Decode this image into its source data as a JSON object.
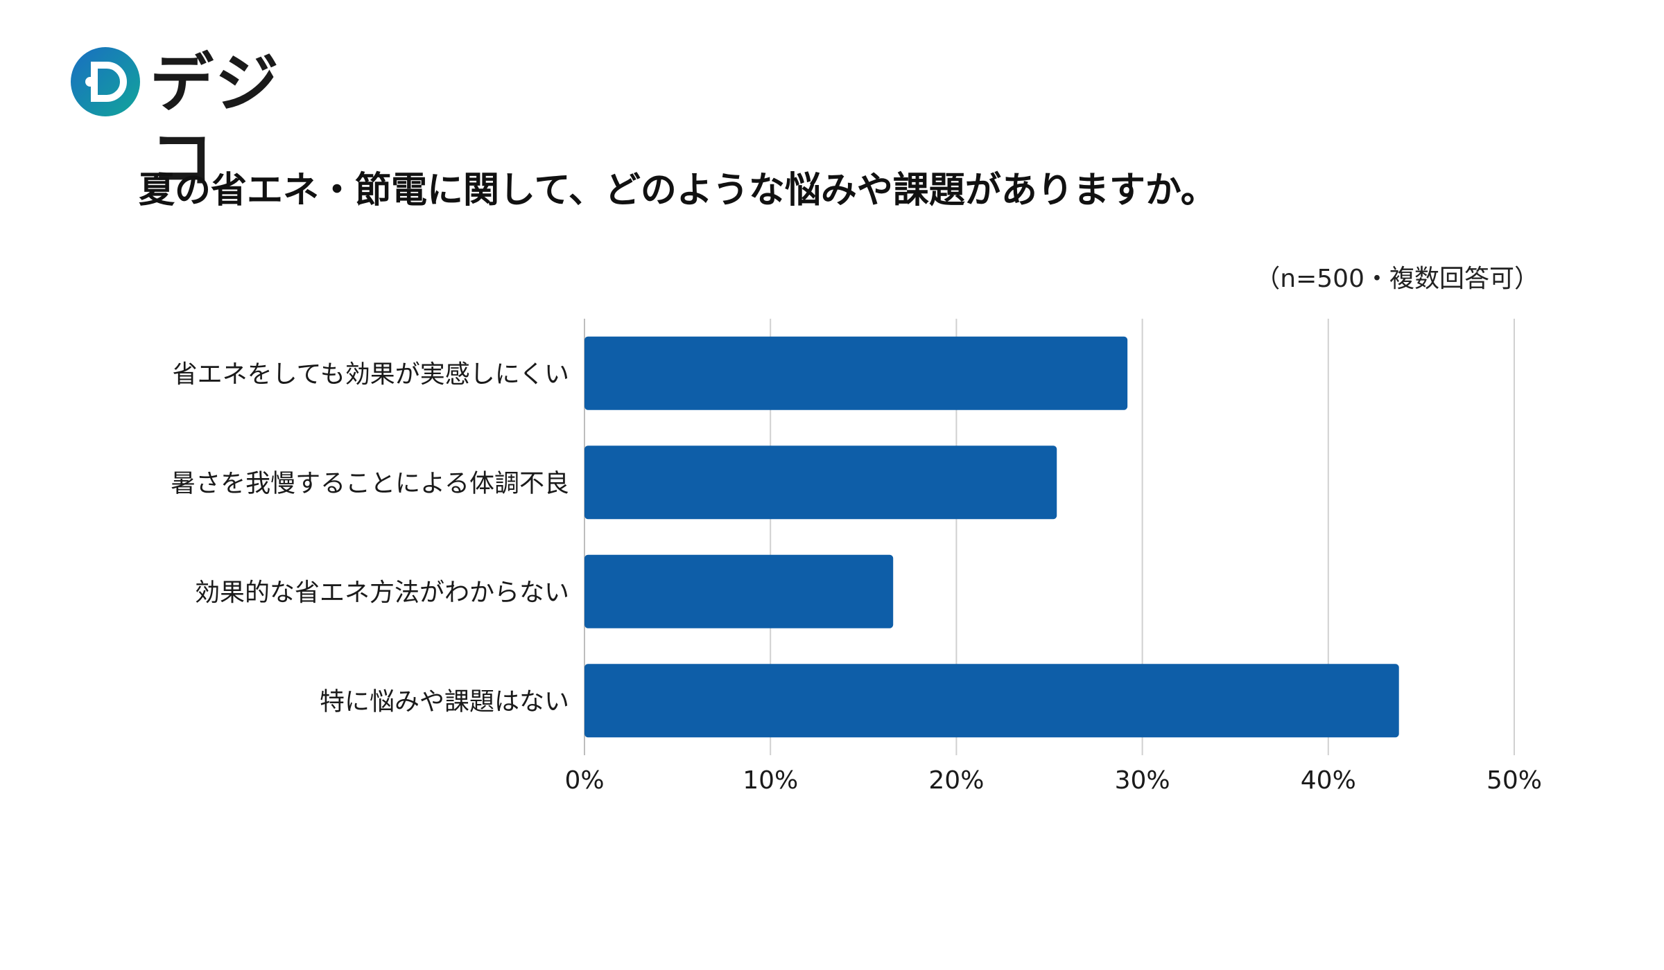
{
  "brand": {
    "name": "デジコ",
    "mark_letter": "D",
    "colors": {
      "mark_start": "#1a6ec2",
      "mark_end": "#12a59a",
      "dots": "#22a6c9"
    }
  },
  "chart_data": {
    "type": "bar",
    "orientation": "horizontal",
    "title": "夏の省エネ・節電に関して、どのような悩みや課題がありますか。",
    "note": "（n=500・複数回答可）",
    "categories": [
      "省エネをしても効果が実感しにくい",
      "暑さを我慢することによる体調不良",
      "効果的な省エネ方法がわからない",
      "特に悩みや課題はない"
    ],
    "values": [
      29.2,
      25.4,
      16.6,
      43.8
    ],
    "unit": "%",
    "xlim": [
      0,
      50
    ],
    "xticks": [
      0,
      10,
      20,
      30,
      40,
      50
    ],
    "xtick_labels": [
      "0%",
      "10%",
      "20%",
      "30%",
      "40%",
      "50%"
    ],
    "grid": "vertical",
    "bar_color": "#0e5ea8",
    "grid_color": "#d0d0d0"
  }
}
